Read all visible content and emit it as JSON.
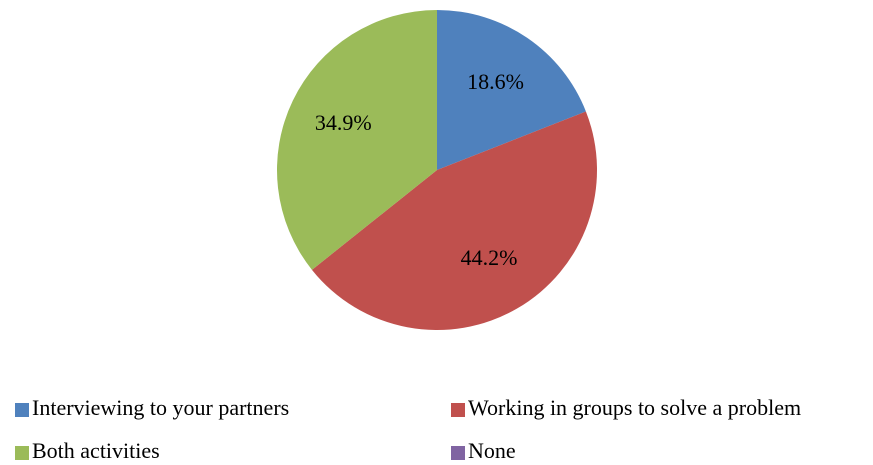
{
  "chart_data": {
    "type": "pie",
    "categories": [
      "Interviewing to your partners",
      "Working in groups to solve a problem",
      "Both activities",
      "None"
    ],
    "values": [
      18.6,
      44.2,
      34.9,
      0
    ],
    "value_labels": [
      "18.6%",
      "44.2%",
      "34.9%",
      null
    ],
    "colors": [
      "#4f81bd",
      "#c0504d",
      "#9bbb59",
      "#8064a2"
    ],
    "legend": "bottom"
  }
}
